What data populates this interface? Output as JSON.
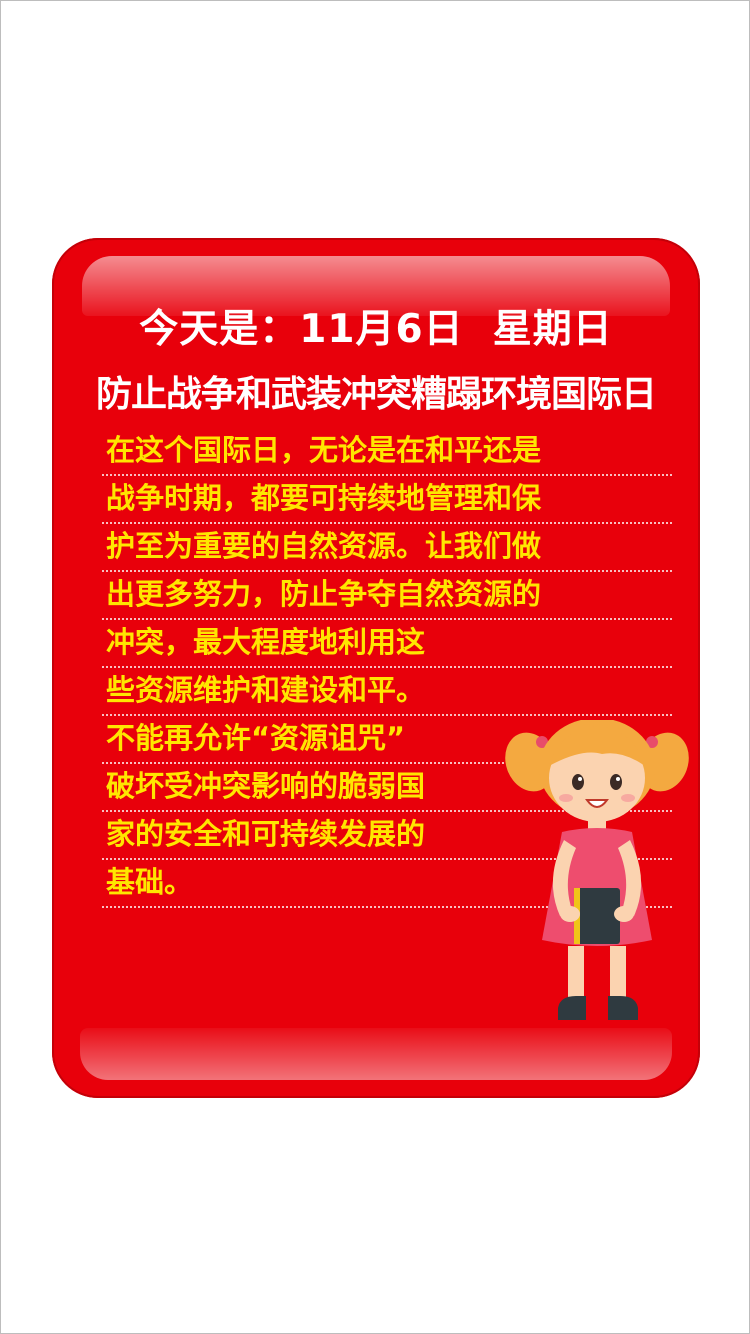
{
  "header": {
    "date_line": "今天是：11月6日  星期日",
    "day_title": "防止战争和武装冲突糟蹋环境国际日"
  },
  "body": {
    "lines": [
      "在这个国际日，无论是在和平还是",
      "战争时期，都要可持续地管理和保",
      "护至为重要的自然资源。让我们做",
      "出更多努力，防止争夺自然资源的",
      "冲突，最大程度地利用这",
      "些资源维护和建设和平。",
      "不能再允许“资源诅咒”",
      "破坏受冲突影响的脆弱国",
      "家的安全和可持续发展的",
      "基础。"
    ]
  },
  "colors": {
    "card_red": "#e8000b",
    "title_white": "#ffffff",
    "body_yellow": "#ffe600"
  },
  "illustration": {
    "icon": "girl-holding-book-illustration"
  }
}
